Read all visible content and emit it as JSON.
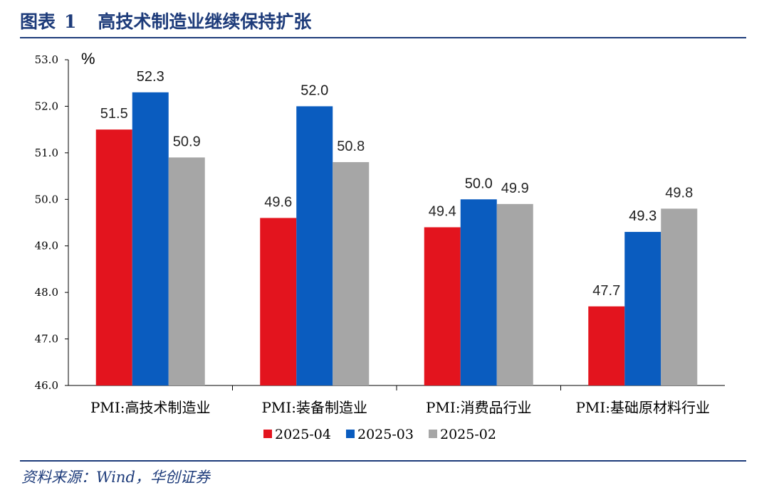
{
  "header": {
    "label": "图表",
    "number": "1",
    "title": "高技术制造业继续保持扩张"
  },
  "footer": {
    "source": "资料来源：Wind，华创证券"
  },
  "colors": {
    "title": "#1d3b7a",
    "series": [
      "#e3141e",
      "#0a5cbf",
      "#a6a6a6"
    ]
  },
  "chart_data": {
    "type": "bar",
    "unit": "%",
    "categories": [
      "PMI:高技术制造业",
      "PMI:装备制造业",
      "PMI:消费品行业",
      "PMI:基础原材料行业"
    ],
    "series": [
      {
        "name": "2025-04",
        "values": [
          51.5,
          49.6,
          49.4,
          47.7
        ]
      },
      {
        "name": "2025-03",
        "values": [
          52.3,
          52.0,
          50.0,
          49.3
        ]
      },
      {
        "name": "2025-02",
        "values": [
          50.9,
          50.8,
          49.9,
          49.8
        ]
      }
    ],
    "ylim": [
      46.0,
      53.0
    ],
    "yticks": [
      "46.0",
      "47.0",
      "48.0",
      "49.0",
      "50.0",
      "51.0",
      "52.0",
      "53.0"
    ],
    "legend_position": "bottom",
    "grid": false,
    "data_labels": true
  }
}
